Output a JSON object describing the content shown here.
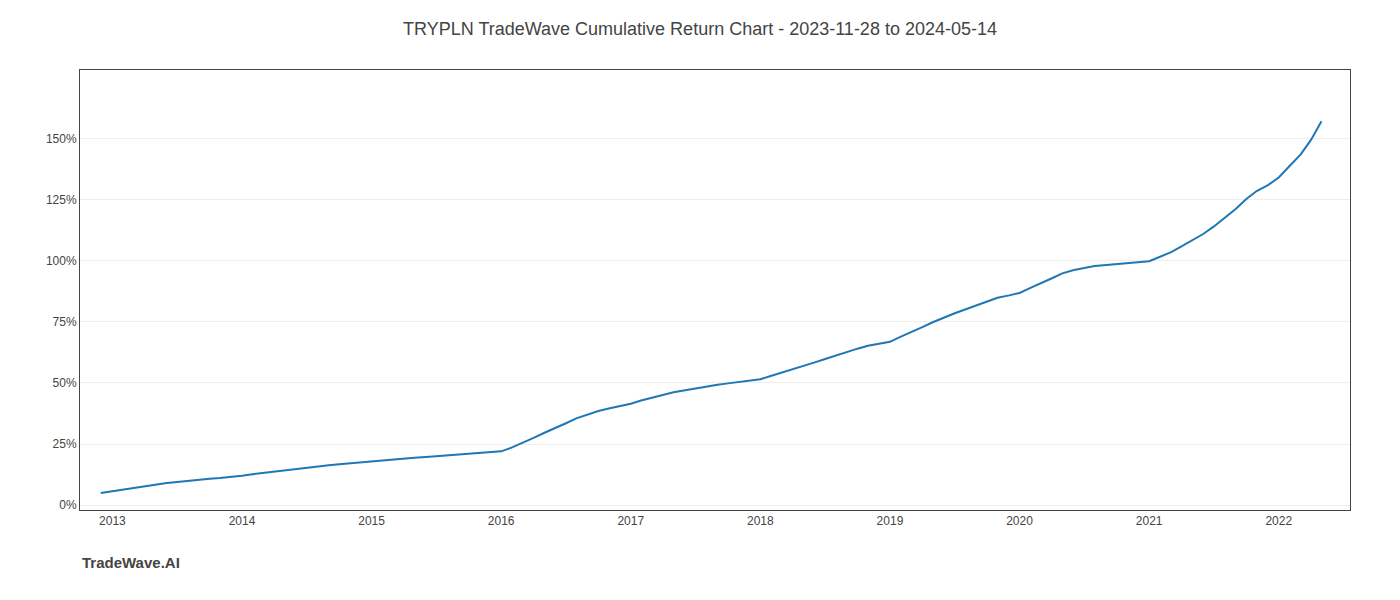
{
  "chart_data": {
    "type": "line",
    "title": "TRYPLN TradeWave Cumulative Return Chart - 2023-11-28 to 2024-05-14",
    "annotations": [
      "TradeWave.AI"
    ],
    "x": [
      2012.91,
      2013.0,
      2013.08,
      2013.17,
      2013.25,
      2013.33,
      2013.42,
      2013.5,
      2013.58,
      2013.67,
      2013.75,
      2013.83,
      2013.92,
      2014.0,
      2014.08,
      2014.17,
      2014.25,
      2014.33,
      2014.42,
      2014.5,
      2014.58,
      2014.67,
      2014.75,
      2014.83,
      2014.92,
      2015.0,
      2015.08,
      2015.17,
      2015.25,
      2015.33,
      2015.42,
      2015.5,
      2015.58,
      2015.67,
      2015.75,
      2015.83,
      2015.92,
      2016.0,
      2016.08,
      2016.17,
      2016.25,
      2016.33,
      2016.42,
      2016.5,
      2016.58,
      2016.67,
      2016.75,
      2016.83,
      2016.92,
      2017.0,
      2017.08,
      2017.17,
      2017.25,
      2017.33,
      2017.42,
      2017.5,
      2017.58,
      2017.67,
      2017.75,
      2017.83,
      2017.92,
      2018.0,
      2018.08,
      2018.17,
      2018.25,
      2018.33,
      2018.42,
      2018.5,
      2018.58,
      2018.67,
      2018.75,
      2018.83,
      2018.92,
      2019.0,
      2019.08,
      2019.17,
      2019.25,
      2019.33,
      2019.42,
      2019.5,
      2019.58,
      2019.67,
      2019.75,
      2019.83,
      2019.92,
      2020.0,
      2020.08,
      2020.17,
      2020.25,
      2020.33,
      2020.42,
      2020.5,
      2020.58,
      2020.67,
      2020.75,
      2020.83,
      2020.92,
      2021.0,
      2021.08,
      2021.17,
      2021.25,
      2021.33,
      2021.42,
      2021.5,
      2021.58,
      2021.67,
      2021.75,
      2021.83,
      2021.92,
      2022.0,
      2022.08,
      2022.17,
      2022.25,
      2022.33
    ],
    "values": [
      0.05,
      0.057,
      0.065,
      0.072,
      0.078,
      0.085,
      0.09,
      0.095,
      0.1,
      0.105,
      0.108,
      0.111,
      0.115,
      0.12,
      0.126,
      0.132,
      0.138,
      0.143,
      0.148,
      0.153,
      0.158,
      0.163,
      0.167,
      0.171,
      0.175,
      0.178,
      0.182,
      0.186,
      0.19,
      0.194,
      0.197,
      0.2,
      0.202,
      0.205,
      0.208,
      0.211,
      0.215,
      0.22,
      0.235,
      0.255,
      0.275,
      0.295,
      0.315,
      0.335,
      0.355,
      0.37,
      0.385,
      0.395,
      0.405,
      0.415,
      0.428,
      0.44,
      0.452,
      0.462,
      0.47,
      0.478,
      0.485,
      0.492,
      0.498,
      0.503,
      0.508,
      0.515,
      0.528,
      0.542,
      0.556,
      0.57,
      0.584,
      0.598,
      0.612,
      0.626,
      0.64,
      0.652,
      0.66,
      0.668,
      0.688,
      0.708,
      0.728,
      0.748,
      0.768,
      0.785,
      0.8,
      0.818,
      0.835,
      0.848,
      0.858,
      0.868,
      0.888,
      0.908,
      0.928,
      0.948,
      0.962,
      0.97,
      0.978,
      0.982,
      0.986,
      0.99,
      0.994,
      0.998,
      1.015,
      1.035,
      1.058,
      1.082,
      1.11,
      1.14,
      1.175,
      1.212,
      1.252,
      1.285,
      1.31,
      1.34,
      1.385,
      1.435,
      1.495,
      1.57
    ],
    "xlim": [
      2012.75,
      2022.55
    ],
    "ylim": [
      -0.02,
      1.78
    ],
    "xticks": [
      2013,
      2014,
      2015,
      2016,
      2017,
      2018,
      2019,
      2020,
      2021,
      2022
    ],
    "yticks": [
      {
        "value": 0.0,
        "label": "0%"
      },
      {
        "value": 0.25,
        "label": "25%"
      },
      {
        "value": 0.5,
        "label": "50%"
      },
      {
        "value": 0.75,
        "label": "75%"
      },
      {
        "value": 1.0,
        "label": "100%"
      },
      {
        "value": 1.25,
        "label": "125%"
      },
      {
        "value": 1.5,
        "label": "150%"
      }
    ],
    "grid": "y"
  }
}
